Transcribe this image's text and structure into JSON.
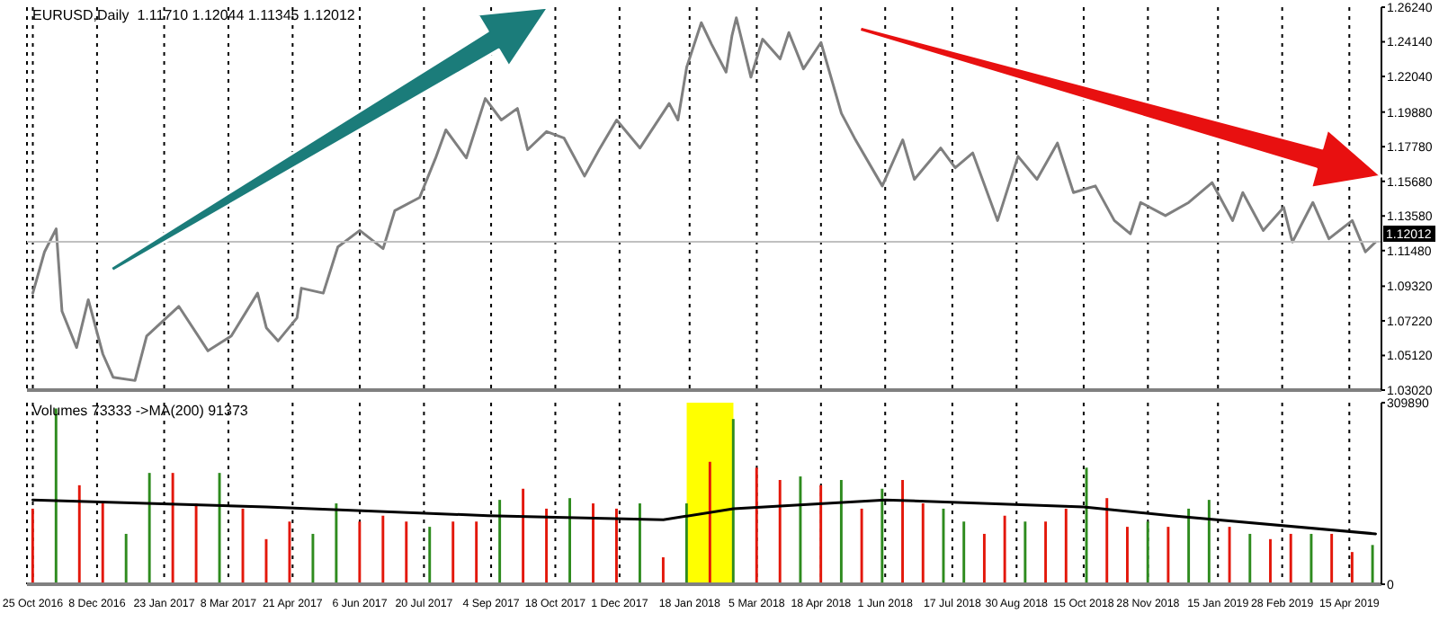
{
  "chart_data": [
    {
      "type": "line",
      "title": "EURUSD,Daily  1.11710 1.12044 1.11345 1.12012",
      "x": [
        "2016-10-25",
        "2016-11-02",
        "2016-11-10",
        "2016-11-14",
        "2016-11-24",
        "2016-12-02",
        "2016-12-12",
        "2016-12-19",
        "2017-01-03",
        "2017-01-11",
        "2017-02-02",
        "2017-02-22",
        "2017-03-10",
        "2017-03-28",
        "2017-04-03",
        "2017-04-11",
        "2017-04-24",
        "2017-04-27",
        "2017-05-12",
        "2017-05-22",
        "2017-06-06",
        "2017-06-22",
        "2017-06-30",
        "2017-07-17",
        "2017-07-28",
        "2017-08-04",
        "2017-08-18",
        "2017-08-31",
        "2017-09-11",
        "2017-09-22",
        "2017-09-29",
        "2017-10-12",
        "2017-10-24",
        "2017-11-07",
        "2017-11-17",
        "2017-11-29",
        "2017-12-15",
        "2018-01-04",
        "2018-01-10",
        "2018-01-16",
        "2018-01-26",
        "2018-02-02",
        "2018-02-12",
        "2018-02-16",
        "2018-02-19",
        "2018-03-01",
        "2018-03-09",
        "2018-03-21",
        "2018-03-27",
        "2018-04-06",
        "2018-04-18",
        "2018-05-02",
        "2018-05-11",
        "2018-05-30",
        "2018-06-13",
        "2018-06-21",
        "2018-07-09",
        "2018-07-19",
        "2018-07-31",
        "2018-08-17",
        "2018-08-31",
        "2018-09-13",
        "2018-09-27",
        "2018-10-08",
        "2018-10-23",
        "2018-11-05",
        "2018-11-16",
        "2018-11-23",
        "2018-12-10",
        "2018-12-26",
        "2019-01-11",
        "2019-01-25",
        "2019-02-01",
        "2019-02-15",
        "2019-03-01",
        "2019-03-07",
        "2019-03-21",
        "2019-04-01",
        "2019-04-17",
        "2019-04-26",
        "2019-05-03"
      ],
      "series": [
        {
          "color": "#7f7f7f",
          "values": [
            1.089,
            1.114,
            1.128,
            1.078,
            1.056,
            1.085,
            1.052,
            1.038,
            1.036,
            1.063,
            1.081,
            1.054,
            1.063,
            1.089,
            1.068,
            1.06,
            1.074,
            1.092,
            1.089,
            1.117,
            1.127,
            1.116,
            1.139,
            1.147,
            1.171,
            1.188,
            1.171,
            1.207,
            1.194,
            1.201,
            1.176,
            1.187,
            1.183,
            1.16,
            1.176,
            1.194,
            1.177,
            1.204,
            1.194,
            1.226,
            1.253,
            1.24,
            1.223,
            1.245,
            1.256,
            1.22,
            1.243,
            1.231,
            1.247,
            1.225,
            1.241,
            1.198,
            1.183,
            1.154,
            1.182,
            1.158,
            1.177,
            1.165,
            1.174,
            1.133,
            1.172,
            1.158,
            1.18,
            1.15,
            1.154,
            1.133,
            1.125,
            1.144,
            1.136,
            1.144,
            1.156,
            1.133,
            1.15,
            1.127,
            1.141,
            1.12,
            1.144,
            1.122,
            1.133,
            1.114,
            1.12
          ]
        }
      ],
      "xlim": [
        "2016-10-21",
        "2019-05-07"
      ],
      "xticks": [
        {
          "value": "2016-10-25",
          "label": null
        },
        {
          "value": "2016-12-08",
          "label": null
        },
        {
          "value": "2017-01-23",
          "label": null
        },
        {
          "value": "2017-03-08",
          "label": null
        },
        {
          "value": "2017-04-21",
          "label": null
        },
        {
          "value": "2017-06-06",
          "label": null
        },
        {
          "value": "2017-07-20",
          "label": null
        },
        {
          "value": "2017-09-04",
          "label": null
        },
        {
          "value": "2017-10-18",
          "label": null
        },
        {
          "value": "2017-12-01",
          "label": null
        },
        {
          "value": "2018-01-18",
          "label": null
        },
        {
          "value": "2018-03-05",
          "label": null
        },
        {
          "value": "2018-04-18",
          "label": null
        },
        {
          "value": "2018-06-01",
          "label": null
        },
        {
          "value": "2018-07-17",
          "label": null
        },
        {
          "value": "2018-08-30",
          "label": null
        },
        {
          "value": "2018-10-15",
          "label": null
        },
        {
          "value": "2018-11-28",
          "label": null
        },
        {
          "value": "2019-01-15",
          "label": null
        },
        {
          "value": "2019-02-28",
          "label": null
        },
        {
          "value": "2019-04-15",
          "label": null
        }
      ],
      "ylim": [
        1.0302,
        1.2624
      ],
      "yticks": [
        {
          "value": 1.0302,
          "label": "1.03020"
        },
        {
          "value": 1.0512,
          "label": "1.05120"
        },
        {
          "value": 1.0722,
          "label": "1.07220"
        },
        {
          "value": 1.0932,
          "label": "1.09320"
        },
        {
          "value": 1.1148,
          "label": "1.11480"
        },
        {
          "value": 1.1358,
          "label": "1.13580"
        },
        {
          "value": 1.1568,
          "label": "1.15680"
        },
        {
          "value": 1.1778,
          "label": "1.17780"
        },
        {
          "value": 1.1988,
          "label": "1.19880"
        },
        {
          "value": 1.2204,
          "label": "1.22040"
        },
        {
          "value": 1.2414,
          "label": "1.24140"
        },
        {
          "value": 1.2624,
          "label": "1.26240"
        }
      ],
      "tick_labels": "y",
      "grid": "x",
      "marker": "none",
      "line_style": "solid",
      "ref_lines": [
        {
          "axis": "y",
          "value": 1.12012,
          "label": "1.12012",
          "color": "#c0c0c0"
        }
      ]
    },
    {
      "type": "bar",
      "title": "Volumes 73333 ->MA(200) 91373",
      "x": [
        "2016-10-25",
        "2016-11-10",
        "2016-11-26",
        "2016-12-12",
        "2016-12-28",
        "2017-01-13",
        "2017-01-29",
        "2017-02-14",
        "2017-03-02",
        "2017-03-18",
        "2017-04-03",
        "2017-04-19",
        "2017-05-05",
        "2017-05-21",
        "2017-06-06",
        "2017-06-22",
        "2017-07-08",
        "2017-07-24",
        "2017-08-09",
        "2017-08-25",
        "2017-09-10",
        "2017-09-26",
        "2017-10-12",
        "2017-10-28",
        "2017-11-13",
        "2017-11-29",
        "2017-12-15",
        "2017-12-31",
        "2018-01-16",
        "2018-02-01",
        "2018-02-17",
        "2018-03-05",
        "2018-03-21",
        "2018-04-04",
        "2018-04-18",
        "2018-05-02",
        "2018-05-16",
        "2018-05-30",
        "2018-06-13",
        "2018-06-27",
        "2018-07-11",
        "2018-07-25",
        "2018-08-08",
        "2018-08-22",
        "2018-09-05",
        "2018-09-19",
        "2018-10-03",
        "2018-10-17",
        "2018-10-31",
        "2018-11-14",
        "2018-11-28",
        "2018-12-12",
        "2018-12-26",
        "2019-01-09",
        "2019-01-23",
        "2019-02-06",
        "2019-02-20",
        "2019-03-06",
        "2019-03-20",
        "2019-04-03",
        "2019-04-17",
        "2019-05-01"
      ],
      "series": [
        {
          "colors": [
            "#e3170a",
            "#2e8b1e",
            "#e3170a",
            "#e3170a",
            "#2e8b1e",
            "#2e8b1e",
            "#e3170a",
            "#e3170a",
            "#2e8b1e",
            "#e3170a",
            "#e3170a",
            "#e3170a",
            "#2e8b1e",
            "#2e8b1e",
            "#e3170a",
            "#e3170a",
            "#e3170a",
            "#2e8b1e",
            "#e3170a",
            "#e3170a",
            "#2e8b1e",
            "#e3170a",
            "#e3170a",
            "#2e8b1e",
            "#e3170a",
            "#e3170a",
            "#2e8b1e",
            "#e3170a",
            "#2e8b1e",
            "#e3170a",
            "#2e8b1e",
            "#e3170a",
            "#e3170a",
            "#2e8b1e",
            "#e3170a",
            "#2e8b1e",
            "#e3170a",
            "#2e8b1e",
            "#e3170a",
            "#e3170a",
            "#2e8b1e",
            "#2e8b1e",
            "#e3170a",
            "#e3170a",
            "#2e8b1e",
            "#e3170a",
            "#e3170a",
            "#2e8b1e",
            "#e3170a",
            "#e3170a",
            "#2e8b1e",
            "#e3170a",
            "#2e8b1e",
            "#2e8b1e",
            "#e3170a",
            "#2e8b1e",
            "#e3170a",
            "#e3170a",
            "#2e8b1e",
            "#e3170a",
            "#e3170a",
            "#2e8b1e"
          ],
          "values": [
            129000,
            300000,
            169000,
            138000,
            86000,
            190000,
            190000,
            138000,
            190000,
            129000,
            77000,
            107000,
            86000,
            138000,
            107000,
            117000,
            107000,
            98000,
            107000,
            107000,
            144000,
            163000,
            129000,
            147000,
            138000,
            129000,
            138000,
            46000,
            138000,
            209000,
            282000,
            199000,
            178000,
            184000,
            169000,
            178000,
            129000,
            163000,
            178000,
            138000,
            129000,
            107000,
            86000,
            117000,
            107000,
            107000,
            129000,
            199000,
            147000,
            98000,
            107000,
            98000,
            129000,
            144000,
            98000,
            86000,
            77000,
            86000,
            86000,
            86000,
            55000,
            67000
          ]
        },
        {
          "type": "line",
          "color": "#000000",
          "x": [
            "2016-10-25",
            "2017-04-03",
            "2017-09-02",
            "2017-12-31",
            "2018-02-17",
            "2018-06-01",
            "2018-10-15",
            "2018-12-14",
            "2019-05-03"
          ],
          "values": [
            144000,
            132000,
            117000,
            110000,
            129000,
            144000,
            132000,
            117000,
            86000
          ]
        }
      ],
      "xlim": [
        "2016-10-21",
        "2019-05-07"
      ],
      "xticks": [
        {
          "value": "2016-10-25",
          "label": "25 Oct 2016"
        },
        {
          "value": "2016-12-08",
          "label": "8 Dec 2016"
        },
        {
          "value": "2017-01-23",
          "label": "23 Jan 2017"
        },
        {
          "value": "2017-03-08",
          "label": "8 Mar 2017"
        },
        {
          "value": "2017-04-21",
          "label": "21 Apr 2017"
        },
        {
          "value": "2017-06-06",
          "label": "6 Jun 2017"
        },
        {
          "value": "2017-07-20",
          "label": "20 Jul 2017"
        },
        {
          "value": "2017-09-04",
          "label": "4 Sep 2017"
        },
        {
          "value": "2017-10-18",
          "label": "18 Oct 2017"
        },
        {
          "value": "2017-12-01",
          "label": "1 Dec 2017"
        },
        {
          "value": "2018-01-18",
          "label": "18 Jan 2018"
        },
        {
          "value": "2018-03-05",
          "label": "5 Mar 2018"
        },
        {
          "value": "2018-04-18",
          "label": "18 Apr 2018"
        },
        {
          "value": "2018-06-01",
          "label": "1 Jun 2018"
        },
        {
          "value": "2018-07-17",
          "label": "17 Jul 2018"
        },
        {
          "value": "2018-08-30",
          "label": "30 Aug 2018"
        },
        {
          "value": "2018-10-15",
          "label": "15 Oct 2018"
        },
        {
          "value": "2018-11-28",
          "label": "28 Nov 2018"
        },
        {
          "value": "2019-01-15",
          "label": "15 Jan 2019"
        },
        {
          "value": "2019-02-28",
          "label": "28 Feb 2019"
        },
        {
          "value": "2019-04-15",
          "label": "15 Apr 2019"
        }
      ],
      "ylim": [
        0,
        309890
      ],
      "yticks": [
        0,
        309890
      ],
      "grid": "x",
      "bands": [
        {
          "axis": "x",
          "from": "2018-01-16",
          "to": "2018-02-17",
          "color": "#ffff00"
        }
      ]
    }
  ]
}
